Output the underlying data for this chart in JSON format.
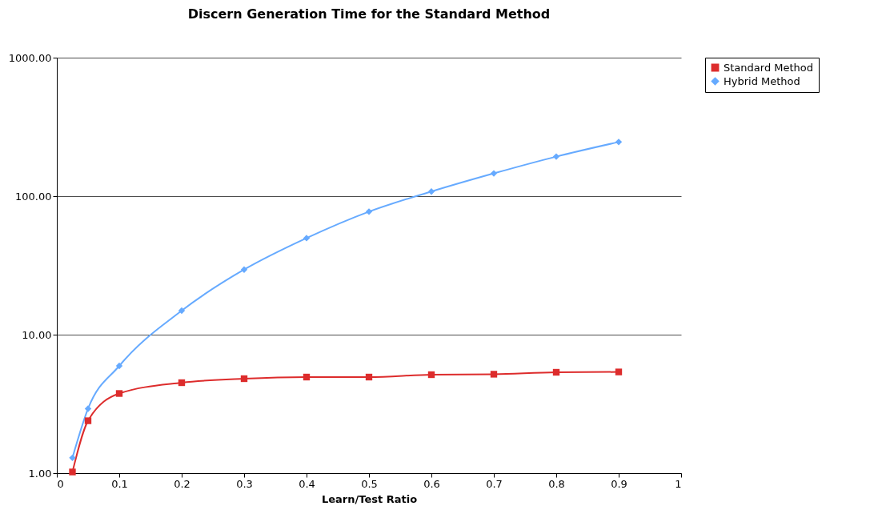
{
  "chart_data": {
    "type": "line",
    "title": "Discern Generation Time for the Standard Method",
    "xlabel": "Learn/Test Ratio",
    "x": [
      0.025,
      0.05,
      0.1,
      0.2,
      0.3,
      0.4,
      0.5,
      0.6,
      0.7,
      0.8,
      0.9
    ],
    "series": [
      {
        "name": "Standard Method",
        "color": "#dd2c2c",
        "marker": "square",
        "values": [
          1.02,
          2.39,
          3.76,
          4.5,
          4.81,
          4.94,
          4.94,
          5.14,
          5.18,
          5.35,
          5.38
        ]
      },
      {
        "name": "Hybrid Method",
        "color": "#66aaff",
        "marker": "diamond",
        "values": [
          1.29,
          2.92,
          5.95,
          14.9,
          29.5,
          49.8,
          77.3,
          108,
          146,
          193,
          246
        ]
      }
    ],
    "log": true,
    "xlim": [
      0,
      1
    ],
    "xticks": [
      0,
      0.1,
      0.2,
      0.3,
      0.4,
      0.5,
      0.6,
      0.7,
      0.8,
      0.9,
      1
    ],
    "ylim": [
      1,
      1000
    ],
    "yticks": [
      {
        "value": 1,
        "label": "1.00"
      },
      {
        "value": 10,
        "label": "10.00"
      },
      {
        "value": 100,
        "label": "100.00"
      },
      {
        "value": 1000,
        "label": "1000.00"
      }
    ],
    "grid": "y",
    "legend": "right",
    "line_style": "solid"
  }
}
